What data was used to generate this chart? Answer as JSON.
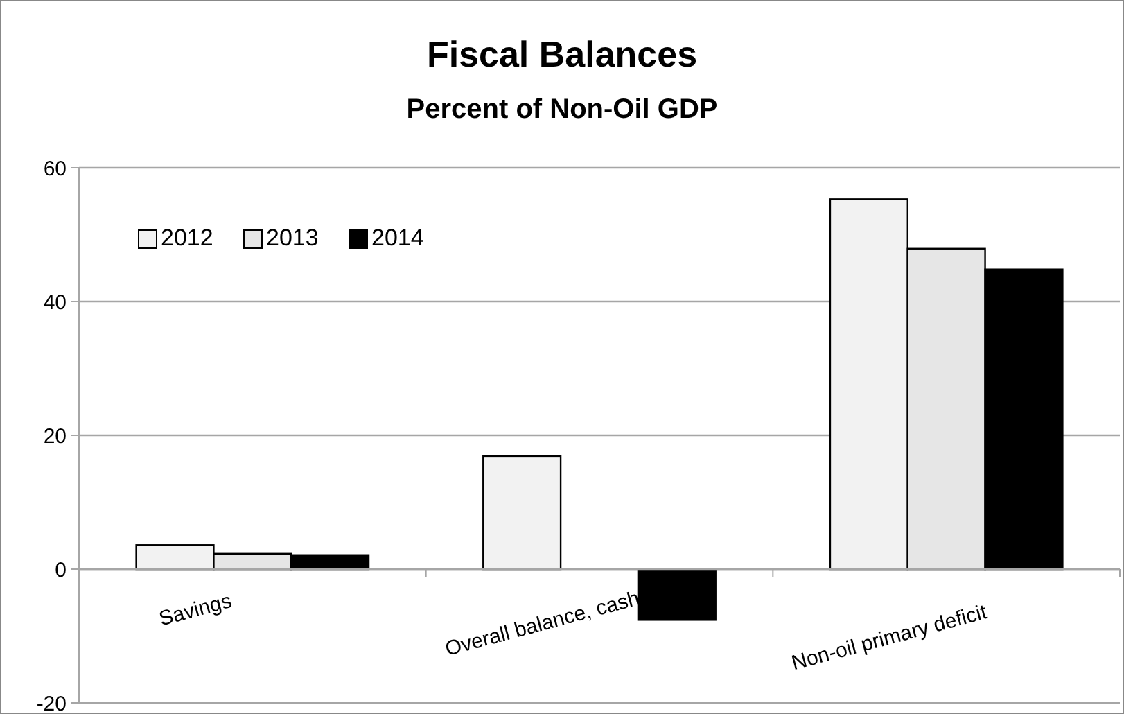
{
  "chart_data": {
    "type": "bar",
    "title": "Fiscal Balances",
    "subtitle": "Percent of Non-Oil GDP",
    "categories": [
      "Savings",
      "Overall balance, cash",
      "Non-oil primary deficit"
    ],
    "series": [
      {
        "name": "2012",
        "color": "#f2f2f2",
        "values": [
          3.6,
          16.9,
          55.3
        ]
      },
      {
        "name": "2013",
        "color": "#e6e6e6",
        "values": [
          2.3,
          0,
          47.9
        ]
      },
      {
        "name": "2014",
        "color": "#000000",
        "values": [
          2.1,
          -7.6,
          44.8
        ]
      }
    ],
    "ylim": [
      -20,
      60
    ],
    "yticks": [
      -20,
      0,
      20,
      40,
      60
    ],
    "grid": "y",
    "legend": "top left"
  }
}
